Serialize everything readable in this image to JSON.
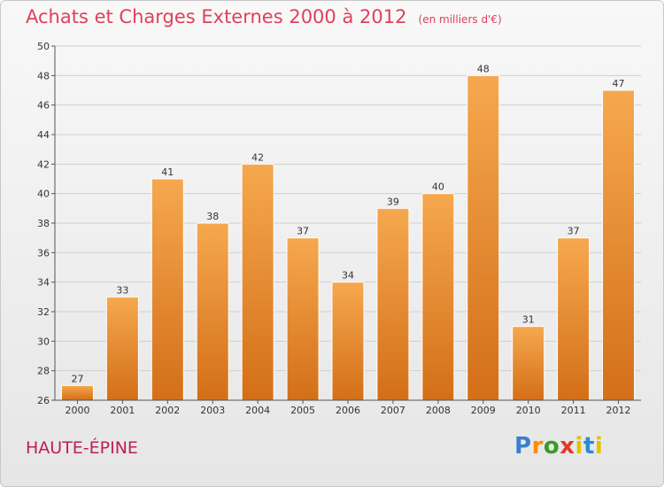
{
  "title": {
    "main": "Achats et Charges Externes 2000 à 2012",
    "sub": "(en milliers d'€)"
  },
  "place_label": "HAUTE-ÉPINE",
  "logo": {
    "letters": [
      "P",
      "r",
      "o",
      "x",
      "i",
      "t",
      "i"
    ],
    "colors": [
      "#3a7fd0",
      "#ff8a00",
      "#3a9a2a",
      "#e23a2a",
      "#e0c400",
      "#2a8ad6",
      "#e0c400"
    ]
  },
  "colors": {
    "bar_top": "#f6a84e",
    "bar_bottom": "#d36f18",
    "axis": "#555555",
    "grid": "#cfcfcf"
  },
  "chart_data": {
    "type": "bar",
    "title": "Achats et Charges Externes 2000 à 2012",
    "subtitle": "(en milliers d'€)",
    "xlabel": "",
    "ylabel": "",
    "categories": [
      "2000",
      "2001",
      "2002",
      "2003",
      "2004",
      "2005",
      "2006",
      "2007",
      "2008",
      "2009",
      "2010",
      "2011",
      "2012"
    ],
    "values": [
      27,
      33,
      41,
      38,
      42,
      37,
      34,
      39,
      40,
      48,
      31,
      37,
      47
    ],
    "ylim": [
      26,
      50
    ],
    "yticks": [
      26,
      28,
      30,
      32,
      34,
      36,
      38,
      40,
      42,
      44,
      46,
      48,
      50
    ],
    "grid": true
  }
}
